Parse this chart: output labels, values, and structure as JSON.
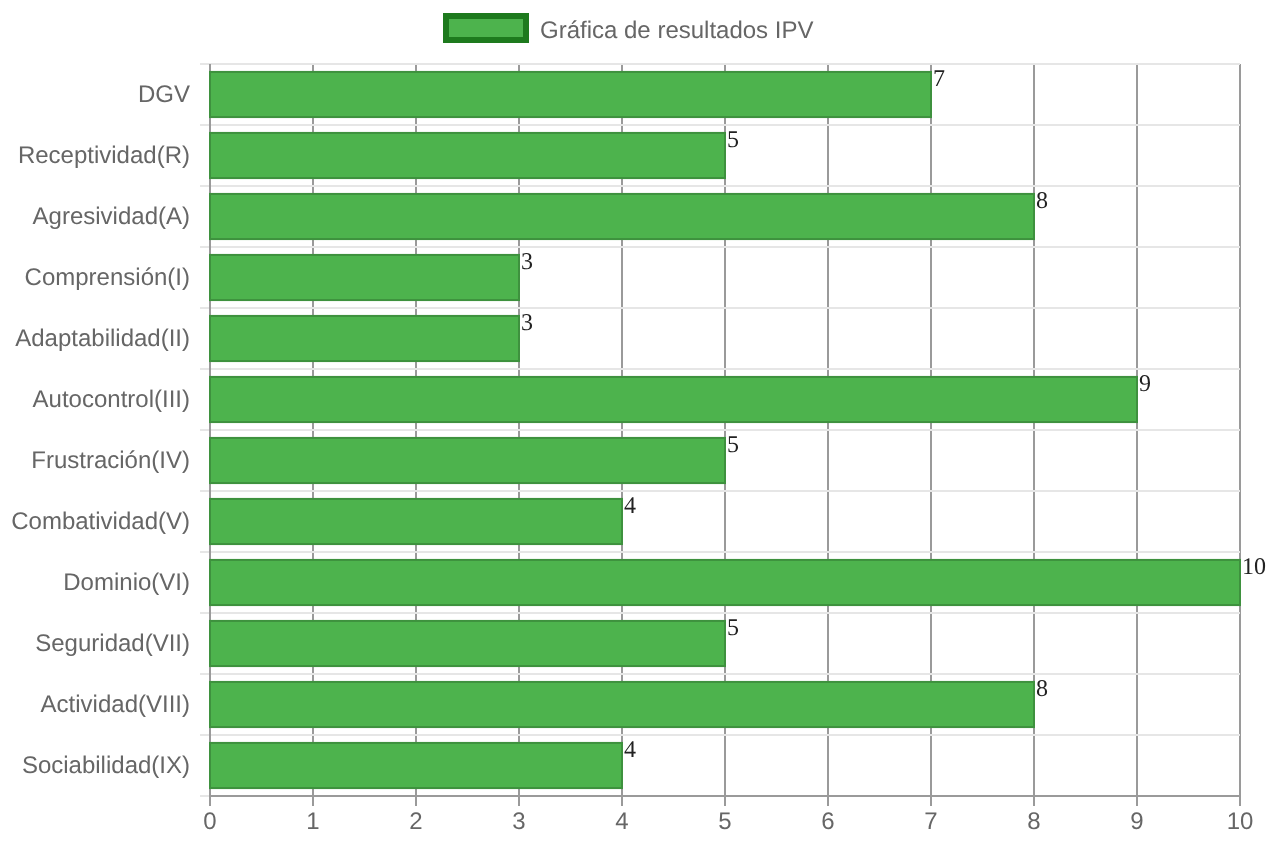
{
  "chart_data": {
    "type": "bar",
    "orientation": "horizontal",
    "categories": [
      "DGV",
      "Receptividad(R)",
      "Agresividad(A)",
      "Comprensión(I)",
      "Adaptabilidad(II)",
      "Autocontrol(III)",
      "Frustración(IV)",
      "Combatividad(V)",
      "Dominio(VI)",
      "Seguridad(VII)",
      "Actividad(VIII)",
      "Sociabilidad(IX)"
    ],
    "series": [
      {
        "name": "Gráfica de resultados IPV",
        "color": "#4db34d",
        "values": [
          7,
          5,
          8,
          3,
          3,
          9,
          5,
          4,
          10,
          5,
          8,
          4
        ]
      }
    ],
    "xlim": [
      0,
      10
    ],
    "xticks": [
      0,
      1,
      2,
      3,
      4,
      5,
      6,
      7,
      8,
      9,
      10
    ],
    "grid": true,
    "legend": "top",
    "data_labels": true
  }
}
